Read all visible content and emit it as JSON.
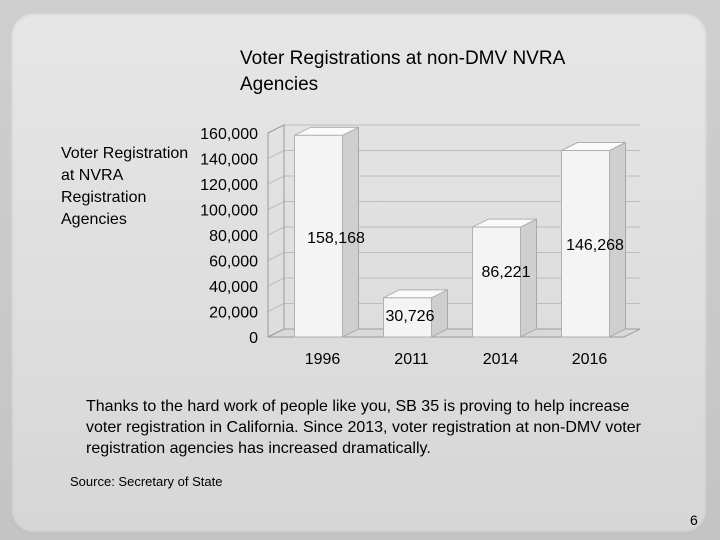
{
  "chart_data": {
    "type": "bar",
    "title": "Voter Registrations at non-DMV NVRA Agencies",
    "ylabel": "Voter Registration at NVRA Registration Agencies",
    "xlabel": "",
    "categories": [
      "1996",
      "2011",
      "2014",
      "2016"
    ],
    "values": [
      158168,
      30726,
      86221,
      146268
    ],
    "data_labels": [
      "158,168",
      "30,726",
      "86,221",
      "146,268"
    ],
    "ylim": [
      0,
      160000
    ],
    "yticks": [
      "0",
      "20,000",
      "40,000",
      "60,000",
      "80,000",
      "100,000",
      "120,000",
      "140,000",
      "160,000"
    ],
    "grid": true,
    "legend": "none",
    "bar_color": "#f4f4f4",
    "style": "3d-columns"
  },
  "body_text": "Thanks to the hard work of people like you, SB 35 is proving to help increase voter registration in California. Since 2013, voter registration at non-DMV voter registration agencies has increased dramatically.",
  "source": "Source: Secretary of State",
  "page_number": "6"
}
